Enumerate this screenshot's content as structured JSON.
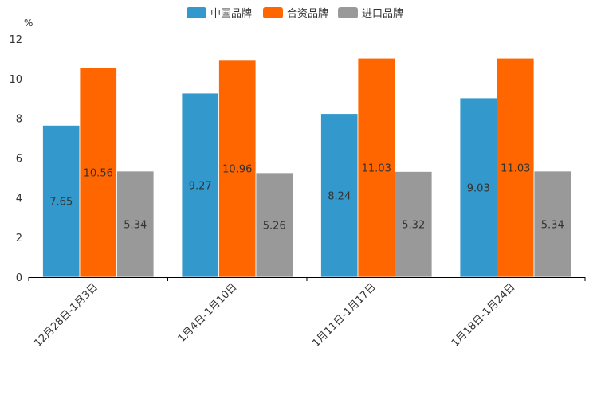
{
  "chart_data": {
    "type": "bar",
    "unit": "%",
    "categories": [
      "12月28日-1月3日",
      "1月4日-1月10日",
      "1月11日-1月17日",
      "1月18日-1月24日"
    ],
    "series": [
      {
        "name": "中国品牌",
        "color": "#3399cc",
        "values": [
          7.65,
          9.27,
          8.24,
          9.03
        ]
      },
      {
        "name": "合资品牌",
        "color": "#ff6600",
        "values": [
          10.56,
          10.96,
          11.03,
          11.03
        ]
      },
      {
        "name": "进口品牌",
        "color": "#999999",
        "values": [
          5.34,
          5.26,
          5.32,
          5.34
        ]
      }
    ],
    "ylim": [
      0,
      12
    ],
    "yticks": [
      "0",
      "2",
      "4",
      "6",
      "8",
      "10",
      "12"
    ],
    "legend_position": "top-center",
    "grid": false
  }
}
